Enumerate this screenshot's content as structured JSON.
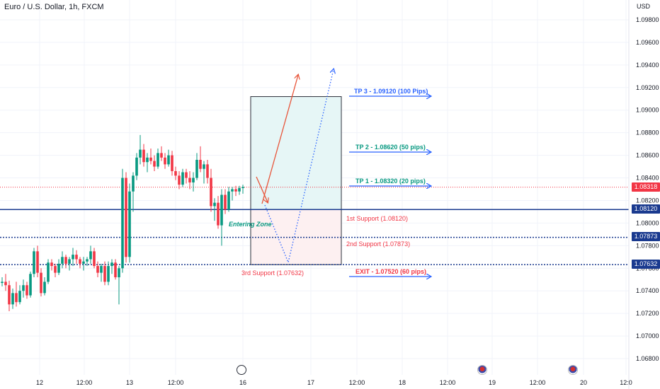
{
  "header": {
    "title": "Euro / U.S. Dollar, 1h, FXCM",
    "currency": "USD"
  },
  "colors": {
    "up": "#089981",
    "down": "#f23645",
    "support": "#1a3a8f",
    "target_text": "#2962ff",
    "tp_text": "#089981",
    "support_text": "#f23645",
    "profit_box": "#e6f6f6",
    "loss_box": "#fdf0f1",
    "last_price_bg": "#f23645",
    "badge_bg": "#1a3a8f"
  },
  "chart_data": {
    "type": "candlestick",
    "symbol": "EURUSD",
    "ylim": [
      1.067,
      1.0985
    ],
    "y_ticks": [
      "1.09800",
      "1.09600",
      "1.09400",
      "1.09200",
      "1.09000",
      "1.08800",
      "1.08600",
      "1.08400",
      "1.08200",
      "1.08000",
      "1.07800",
      "1.07600",
      "1.07400",
      "1.07200",
      "1.07000",
      "1.06800"
    ],
    "x_ticks": [
      "12",
      "12:00",
      "13",
      "12:00",
      "16",
      "17",
      "12:00",
      "18",
      "12:00",
      "19",
      "12:00",
      "20",
      "12:0"
    ],
    "candles": [
      [
        1.0747,
        1.0752,
        1.0744,
        1.0748
      ],
      [
        1.0748,
        1.0755,
        1.074,
        1.0745
      ],
      [
        1.0745,
        1.0749,
        1.0722,
        1.0728
      ],
      [
        1.0728,
        1.0742,
        1.0724,
        1.0738
      ],
      [
        1.0738,
        1.0748,
        1.0726,
        1.073
      ],
      [
        1.073,
        1.0745,
        1.0728,
        1.074
      ],
      [
        1.074,
        1.075,
        1.0734,
        1.0745
      ],
      [
        1.0745,
        1.0748,
        1.0733,
        1.0736
      ],
      [
        1.0736,
        1.0757,
        1.0734,
        1.0755
      ],
      [
        1.0755,
        1.0778,
        1.0752,
        1.0775
      ],
      [
        1.0775,
        1.078,
        1.0752,
        1.0756
      ],
      [
        1.0756,
        1.076,
        1.0735,
        1.0738
      ],
      [
        1.0738,
        1.0752,
        1.0736,
        1.0748
      ],
      [
        1.0748,
        1.0768,
        1.0746,
        1.0765
      ],
      [
        1.0765,
        1.0768,
        1.0758,
        1.0762
      ],
      [
        1.0762,
        1.0764,
        1.0752,
        1.0756
      ],
      [
        1.0756,
        1.0768,
        1.0754,
        1.0764
      ],
      [
        1.0764,
        1.0775,
        1.076,
        1.077
      ],
      [
        1.077,
        1.0772,
        1.076,
        1.0764
      ],
      [
        1.0764,
        1.077,
        1.0758,
        1.0768
      ],
      [
        1.0768,
        1.0778,
        1.0762,
        1.0772
      ],
      [
        1.0772,
        1.0776,
        1.0764,
        1.0768
      ],
      [
        1.0768,
        1.077,
        1.076,
        1.0764
      ],
      [
        1.0764,
        1.077,
        1.0758,
        1.0766
      ],
      [
        1.0766,
        1.077,
        1.0762,
        1.0768
      ],
      [
        1.0768,
        1.078,
        1.0764,
        1.0775
      ],
      [
        1.0775,
        1.0778,
        1.076,
        1.0762
      ],
      [
        1.0762,
        1.0766,
        1.0752,
        1.0756
      ],
      [
        1.0756,
        1.0764,
        1.0748,
        1.0762
      ],
      [
        1.0762,
        1.0766,
        1.0745,
        1.0748
      ],
      [
        1.0748,
        1.0766,
        1.0745,
        1.0762
      ],
      [
        1.0762,
        1.0768,
        1.0755,
        1.0765
      ],
      [
        1.0765,
        1.0768,
        1.075,
        1.0752
      ],
      [
        1.0752,
        1.0762,
        1.0728,
        1.076
      ],
      [
        1.076,
        1.0848,
        1.0756,
        1.084
      ],
      [
        1.084,
        1.0845,
        1.0765,
        1.077
      ],
      [
        1.077,
        1.0835,
        1.0765,
        1.0828
      ],
      [
        1.0828,
        1.0845,
        1.081,
        1.0842
      ],
      [
        1.0842,
        1.0862,
        1.0838,
        1.0858
      ],
      [
        1.0858,
        1.0878,
        1.0852,
        1.0865
      ],
      [
        1.0865,
        1.087,
        1.085,
        1.0854
      ],
      [
        1.0854,
        1.0862,
        1.0845,
        1.0858
      ],
      [
        1.0858,
        1.0866,
        1.0852,
        1.0855
      ],
      [
        1.0855,
        1.086,
        1.0846,
        1.085
      ],
      [
        1.085,
        1.0866,
        1.0848,
        1.0862
      ],
      [
        1.0862,
        1.0868,
        1.0855,
        1.0858
      ],
      [
        1.0858,
        1.0862,
        1.0848,
        1.0852
      ],
      [
        1.0852,
        1.0865,
        1.085,
        1.086
      ],
      [
        1.086,
        1.0864,
        1.0842,
        1.0846
      ],
      [
        1.0846,
        1.085,
        1.0838,
        1.0842
      ],
      [
        1.0842,
        1.0846,
        1.083,
        1.0834
      ],
      [
        1.0834,
        1.0848,
        1.0832,
        1.0845
      ],
      [
        1.0845,
        1.0848,
        1.0835,
        1.084
      ],
      [
        1.084,
        1.0846,
        1.083,
        1.0836
      ],
      [
        1.0836,
        1.0845,
        1.0828,
        1.084
      ],
      [
        1.084,
        1.0862,
        1.0838,
        1.0856
      ],
      [
        1.0856,
        1.0868,
        1.0845,
        1.0848
      ],
      [
        1.0848,
        1.0855,
        1.0835,
        1.0852
      ],
      [
        1.0852,
        1.0856,
        1.0835,
        1.084
      ],
      [
        1.084,
        1.0848,
        1.081,
        1.0815
      ],
      [
        1.0815,
        1.0822,
        1.0802,
        1.0818
      ],
      [
        1.0818,
        1.0824,
        1.0795,
        1.0798
      ],
      [
        1.0798,
        1.083,
        1.078,
        1.0825
      ],
      [
        1.0825,
        1.083,
        1.0808,
        1.0812
      ],
      [
        1.0812,
        1.0832,
        1.081,
        1.0828
      ],
      [
        1.0828,
        1.0832,
        1.082,
        1.083
      ],
      [
        1.083,
        1.0833,
        1.0824,
        1.0828
      ],
      [
        1.0828,
        1.0833,
        1.0825,
        1.0831
      ],
      [
        1.0831,
        1.0834,
        1.0826,
        1.0832
      ]
    ],
    "levels": {
      "last_price": "1.08318",
      "support_1": "1.08120",
      "support_2": "1.07873",
      "support_3": "1.07632"
    },
    "annotations": {
      "tp3": "TP 3 - 1.09120 (100 Pips)",
      "tp2": "TP 2 - 1.08620 (50 pips)",
      "tp1": "TP 1 - 1.08320 (20 pips)",
      "s1": "1st Support (1.08120)",
      "s2": "2nd Support (1.07873)",
      "s3": "3rd Support (1.07632)",
      "exit": "EXIT - 1.07520 (60 pips)",
      "zone": "Entering Zone"
    }
  }
}
